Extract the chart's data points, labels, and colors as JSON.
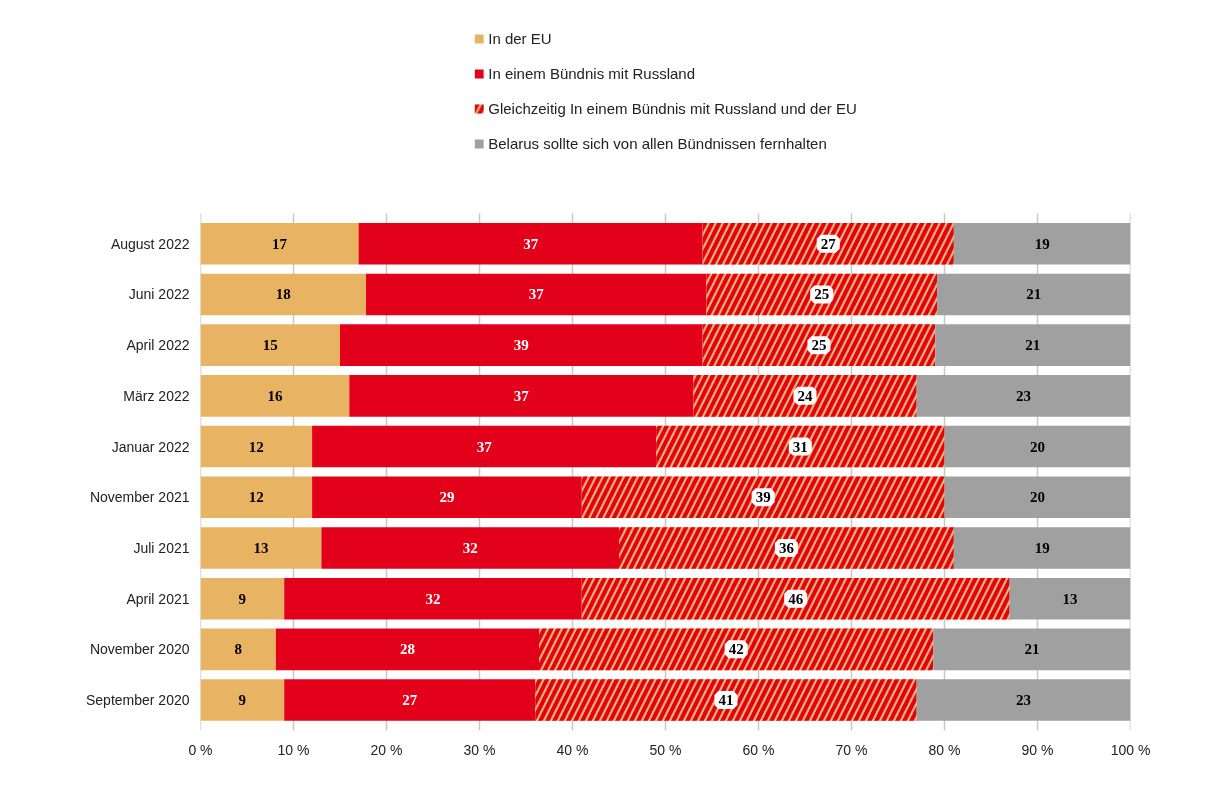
{
  "chart_data": {
    "type": "bar",
    "orientation": "horizontal",
    "stacked": true,
    "categories": [
      "August 2022",
      "Juni 2022",
      "April 2022",
      "März 2022",
      "Januar 2022",
      "November 2021",
      "Juli 2021",
      "April 2021",
      "November 2020",
      "September 2020"
    ],
    "series": [
      {
        "name": "In der EU",
        "color": "#e8b464",
        "values": [
          17,
          17.8,
          15,
          16,
          12,
          12,
          13,
          9,
          8.1,
          9
        ],
        "value_labels": [
          "17",
          "18",
          "15",
          "16",
          "12",
          "12",
          "13",
          "9",
          "8",
          "9"
        ]
      },
      {
        "name": "In einem Bündnis mit Russland",
        "color": "#e2001a",
        "values": [
          37,
          36.6,
          39,
          37,
          37,
          29,
          32,
          32,
          28.3,
          27
        ],
        "value_labels": [
          "37",
          "37",
          "39",
          "37",
          "37",
          "29",
          "32",
          "32",
          "28",
          "27"
        ]
      },
      {
        "name": "Gleichzeitig In einem Bündnis mit Russland und der EU",
        "color": "#e8b464",
        "values": [
          27,
          24.8,
          25,
          24,
          31,
          39,
          36,
          46,
          42.4,
          41
        ],
        "value_labels": [
          "27",
          "25",
          "25",
          "24",
          "31",
          "39",
          "36",
          "46",
          "42",
          "41"
        ]
      },
      {
        "name": "Belarus sollte sich von allen Bündnissen fernhalten",
        "color": "#a0a0a0",
        "values": [
          19,
          20.8,
          21,
          23,
          20,
          20,
          19,
          13,
          21.2,
          23
        ],
        "value_labels": [
          "19",
          "21",
          "21",
          "23",
          "20",
          "20",
          "19",
          "13",
          "21",
          "23"
        ]
      }
    ],
    "xlim": [
      0,
      100
    ],
    "xticks": [
      {
        "value": 0,
        "label": "0 %"
      },
      {
        "value": 10,
        "label": "10 %"
      },
      {
        "value": 20,
        "label": "20 %"
      },
      {
        "value": 30,
        "label": "30 %"
      },
      {
        "value": 40,
        "label": "40 %"
      },
      {
        "value": 50,
        "label": "50 %"
      },
      {
        "value": 60,
        "label": "60 %"
      },
      {
        "value": 70,
        "label": "70 %"
      },
      {
        "value": 80,
        "label": "80 %"
      },
      {
        "value": 90,
        "label": "90 %"
      },
      {
        "value": 100,
        "label": "100 %"
      }
    ],
    "grid": "x",
    "legend": "top"
  }
}
